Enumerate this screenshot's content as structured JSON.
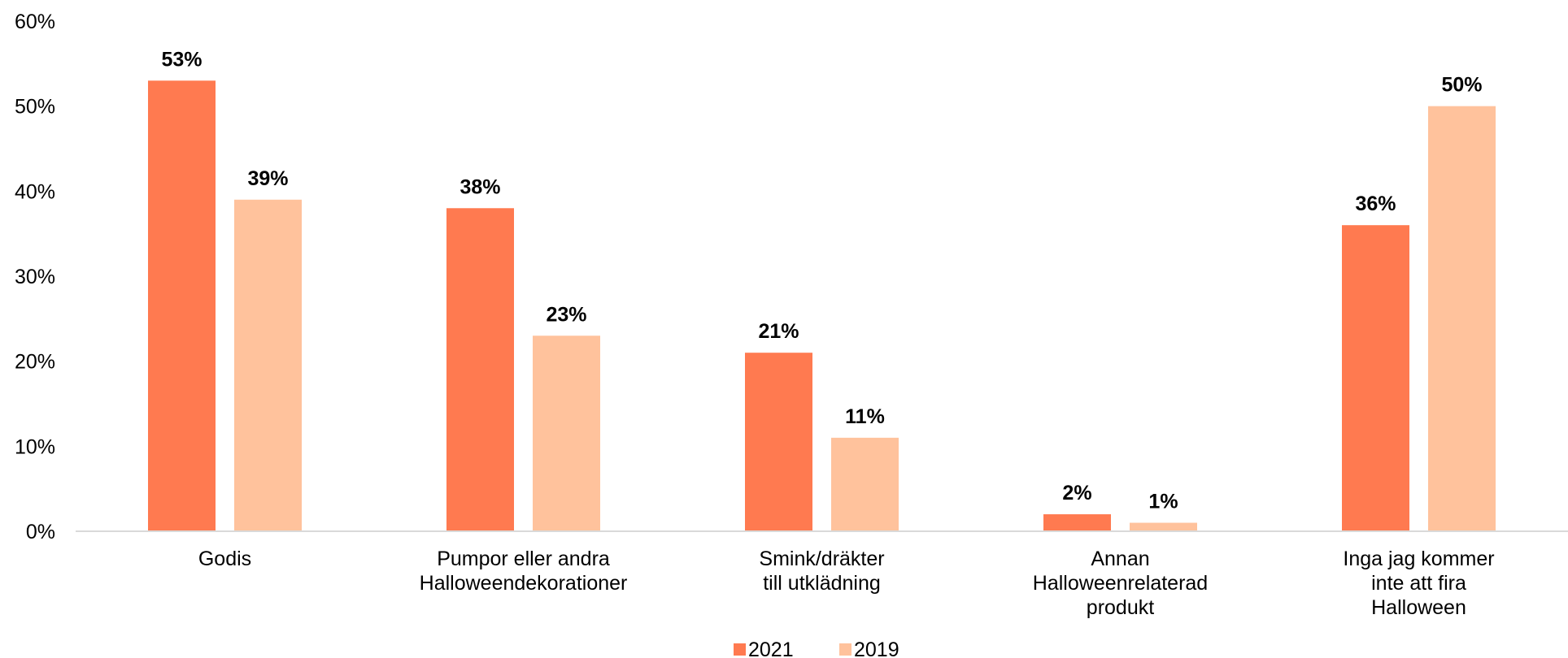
{
  "chart_data": {
    "type": "bar",
    "categories": [
      [
        "Godis"
      ],
      [
        "Pumpor eller andra",
        "Halloweendekorationer"
      ],
      [
        "Smink/dräkter",
        "till utklädning"
      ],
      [
        "Annan",
        "Halloweenrelaterad",
        "produkt"
      ],
      [
        "Inga jag kommer",
        "inte att fira",
        "Halloween"
      ]
    ],
    "series": [
      {
        "name": "2021",
        "color": "#FF7A50",
        "values": [
          53,
          38,
          21,
          2,
          36
        ],
        "labels": [
          "53%",
          "38%",
          "21%",
          "2%",
          "36%"
        ]
      },
      {
        "name": "2019",
        "color": "#FFC29C",
        "values": [
          39,
          23,
          11,
          1,
          50
        ],
        "labels": [
          "39%",
          "23%",
          "11%",
          "1%",
          "50%"
        ]
      }
    ],
    "ylim": [
      0,
      60
    ],
    "yticks": [
      0,
      10,
      20,
      30,
      40,
      50,
      60
    ],
    "ytick_labels": [
      "0%",
      "10%",
      "20%",
      "30%",
      "40%",
      "50%",
      "60%"
    ],
    "legend_position": "bottom",
    "grid": false,
    "axis_color": "#D9D9D9"
  }
}
